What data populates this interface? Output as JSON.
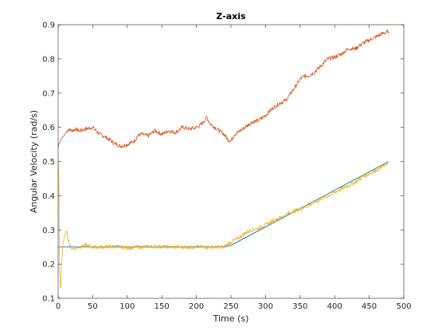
{
  "chart_data": {
    "type": "line",
    "title": "Z-axis",
    "xlabel": "Time (s)",
    "ylabel": "Angular Velocity (rad/s)",
    "xlim": [
      0,
      500
    ],
    "ylim": [
      0.1,
      0.9
    ],
    "xticks": [
      "0",
      "50",
      "100",
      "150",
      "200",
      "250",
      "300",
      "350",
      "400",
      "450",
      "500"
    ],
    "yticks": [
      "0.1",
      "0.2",
      "0.3",
      "0.4",
      "0.5",
      "0.6",
      "0.7",
      "0.8",
      "0.9"
    ],
    "grid": false,
    "legend": "none",
    "series": [
      {
        "color": "#D95319",
        "x": [
          0,
          1,
          3,
          6,
          10,
          15,
          20,
          25,
          30,
          40,
          50,
          55,
          60,
          70,
          80,
          90,
          100,
          110,
          115,
          120,
          130,
          140,
          150,
          160,
          170,
          180,
          190,
          200,
          205,
          210,
          215,
          220,
          230,
          240,
          245,
          250,
          255,
          260,
          270,
          280,
          290,
          300,
          310,
          320,
          330,
          340,
          350,
          355,
          360,
          370,
          380,
          390,
          400,
          410,
          420,
          430,
          440,
          450,
          460,
          470,
          478
        ],
        "values": [
          0.54,
          0.55,
          0.56,
          0.57,
          0.58,
          0.595,
          0.59,
          0.595,
          0.59,
          0.595,
          0.6,
          0.59,
          0.58,
          0.57,
          0.555,
          0.545,
          0.55,
          0.56,
          0.575,
          0.58,
          0.575,
          0.59,
          0.58,
          0.59,
          0.585,
          0.6,
          0.595,
          0.6,
          0.605,
          0.615,
          0.63,
          0.61,
          0.595,
          0.58,
          0.565,
          0.56,
          0.58,
          0.585,
          0.6,
          0.615,
          0.62,
          0.635,
          0.655,
          0.67,
          0.68,
          0.71,
          0.74,
          0.75,
          0.75,
          0.76,
          0.78,
          0.8,
          0.805,
          0.815,
          0.83,
          0.83,
          0.845,
          0.855,
          0.865,
          0.875,
          0.88
        ]
      },
      {
        "color": "#EDB120",
        "x": [
          0,
          1,
          2,
          3,
          4,
          5,
          7,
          9,
          11,
          13,
          15,
          18,
          22,
          30,
          40,
          50,
          60,
          80,
          100,
          120,
          140,
          160,
          180,
          200,
          220,
          240,
          250,
          260,
          270,
          280,
          290,
          300,
          310,
          320,
          330,
          340,
          350,
          360,
          370,
          380,
          390,
          400,
          410,
          420,
          430,
          440,
          450,
          460,
          470,
          478
        ],
        "values": [
          0.5,
          0.45,
          0.2,
          0.13,
          0.14,
          0.2,
          0.26,
          0.28,
          0.295,
          0.29,
          0.27,
          0.25,
          0.245,
          0.25,
          0.255,
          0.25,
          0.25,
          0.252,
          0.248,
          0.25,
          0.252,
          0.25,
          0.25,
          0.25,
          0.25,
          0.25,
          0.265,
          0.275,
          0.29,
          0.3,
          0.305,
          0.315,
          0.325,
          0.335,
          0.345,
          0.355,
          0.36,
          0.37,
          0.38,
          0.39,
          0.4,
          0.41,
          0.42,
          0.43,
          0.44,
          0.455,
          0.465,
          0.475,
          0.485,
          0.5
        ]
      },
      {
        "color": "#0072BD",
        "x": [
          0,
          240,
          250,
          478
        ],
        "values": [
          0.25,
          0.25,
          0.255,
          0.5
        ]
      }
    ]
  }
}
